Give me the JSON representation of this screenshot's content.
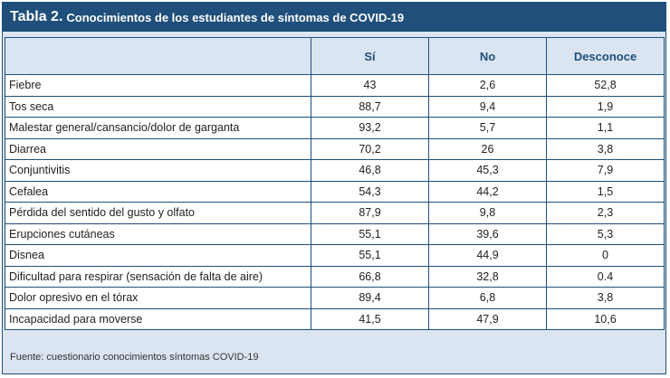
{
  "title": {
    "bold": "Tabla 2.",
    "rest": "Conocimientos de los estudiantes de síntomas de COVID-19"
  },
  "columns": [
    "",
    "Sí",
    "No",
    "Desconoce"
  ],
  "rows": [
    [
      "Fiebre",
      "43",
      "2,6",
      "52,8"
    ],
    [
      "Tos seca",
      "88,7",
      "9,4",
      "1,9"
    ],
    [
      "Malestar general/cansancio/dolor de garganta",
      "93,2",
      "5,7",
      "1,1"
    ],
    [
      "Diarrea",
      "70,2",
      "26",
      "3,8"
    ],
    [
      "Conjuntivitis",
      "46,8",
      "45,3",
      "7,9"
    ],
    [
      "Cefalea",
      "54,3",
      "44,2",
      "1,5"
    ],
    [
      "Pérdida del sentido del gusto y olfato",
      "87,9",
      "9,8",
      "2,3"
    ],
    [
      "Erupciones cutáneas",
      "55,1",
      "39,6",
      "5,3"
    ],
    [
      "Disnea",
      "55,1",
      "44,9",
      "0"
    ],
    [
      "Dificultad para respirar (sensación de falta de aire)",
      "66,8",
      "32,8",
      "0.4"
    ],
    [
      "Dolor opresivo en el tórax",
      "89,4",
      "6,8",
      "3,8"
    ],
    [
      "Incapacidad para moverse",
      "41,5",
      "47,9",
      "10,6"
    ]
  ],
  "footer": "Fuente: cuestionario conocimientos síntomas COVID-19",
  "colors": {
    "header_bar": "#1f4f7a",
    "panel": "#dbe5f1"
  }
}
